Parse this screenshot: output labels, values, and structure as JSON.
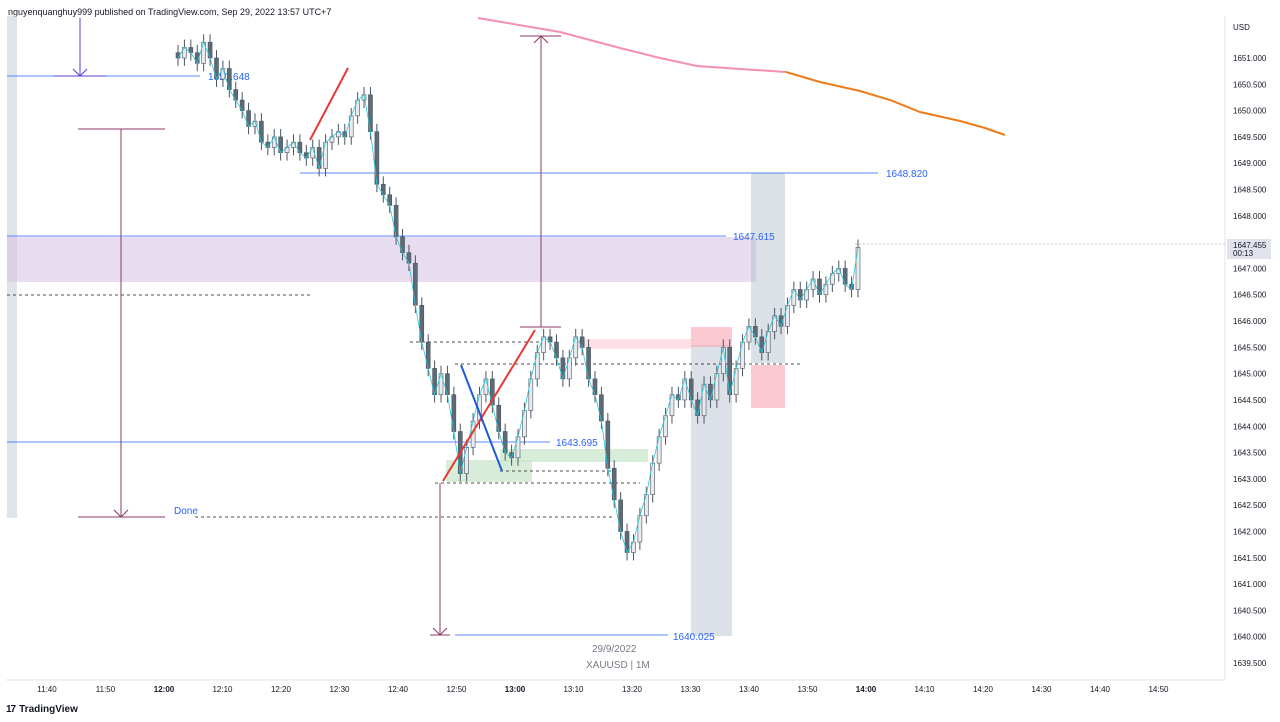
{
  "header": {
    "publisher_text": "nguyenquanghuy999 published on TradingView.com, Sep 29, 2022 13:57 UTC+7"
  },
  "footer": {
    "brand": "TradingView",
    "logo_glyph": "17"
  },
  "chart_data": {
    "type": "candlestick",
    "symbol_label": "XAUUSD | 1M",
    "date_label": "29/9/2022",
    "currency": "USD",
    "y_ticks": [
      "1651.000",
      "1650.500",
      "1650.000",
      "1649.500",
      "1649.000",
      "1648.500",
      "1648.000",
      "1647.500",
      "1647.000",
      "1646.500",
      "1646.000",
      "1645.500",
      "1645.000",
      "1644.500",
      "1644.000",
      "1643.500",
      "1643.000",
      "1642.500",
      "1642.000",
      "1641.500",
      "1641.000",
      "1640.500",
      "1640.000",
      "1639.500"
    ],
    "x_ticks": [
      {
        "label": "11:40",
        "bold": false
      },
      {
        "label": "11:50",
        "bold": false
      },
      {
        "label": "12:00",
        "bold": true
      },
      {
        "label": "12:10",
        "bold": false
      },
      {
        "label": "12:20",
        "bold": false
      },
      {
        "label": "12:30",
        "bold": false
      },
      {
        "label": "12:40",
        "bold": false
      },
      {
        "label": "12:50",
        "bold": false
      },
      {
        "label": "13:00",
        "bold": true
      },
      {
        "label": "13:10",
        "bold": false
      },
      {
        "label": "13:20",
        "bold": false
      },
      {
        "label": "13:30",
        "bold": false
      },
      {
        "label": "13:40",
        "bold": false
      },
      {
        "label": "13:50",
        "bold": false
      },
      {
        "label": "14:00",
        "bold": true
      },
      {
        "label": "14:10",
        "bold": false
      },
      {
        "label": "14:20",
        "bold": false
      },
      {
        "label": "14:30",
        "bold": false
      },
      {
        "label": "14:40",
        "bold": false
      },
      {
        "label": "14:50",
        "bold": false
      }
    ],
    "last_price": "1647.455",
    "countdown": "00:13",
    "levels": [
      {
        "price": "1650.648",
        "value": 1650.648
      },
      {
        "price": "1648.820",
        "value": 1648.82
      },
      {
        "price": "1647.615",
        "value": 1647.615
      },
      {
        "price": "1643.695",
        "value": 1643.695
      },
      {
        "price": "1640.025",
        "value": 1640.025
      }
    ],
    "annotation_done": "Done",
    "candles_close_path": [
      1651.0,
      1651.2,
      1651.1,
      1650.9,
      1651.3,
      1651.0,
      1650.6,
      1650.8,
      1650.4,
      1650.2,
      1650.0,
      1649.7,
      1649.8,
      1649.4,
      1649.3,
      1649.5,
      1649.2,
      1649.3,
      1649.4,
      1649.2,
      1649.1,
      1649.3,
      1648.9,
      1649.4,
      1649.5,
      1649.6,
      1649.5,
      1649.9,
      1650.2,
      1650.3,
      1649.6,
      1648.6,
      1648.4,
      1648.2,
      1647.6,
      1647.3,
      1647.1,
      1646.3,
      1645.6,
      1645.1,
      1644.6,
      1645.0,
      1644.6,
      1643.9,
      1643.1,
      1643.6,
      1644.1,
      1644.6,
      1644.9,
      1644.4,
      1643.9,
      1643.5,
      1643.4,
      1643.8,
      1644.3,
      1644.9,
      1645.4,
      1645.7,
      1645.6,
      1645.3,
      1644.9,
      1645.3,
      1645.7,
      1645.5,
      1644.9,
      1644.6,
      1644.1,
      1643.2,
      1642.6,
      1642.0,
      1641.6,
      1641.8,
      1642.3,
      1642.7,
      1643.3,
      1643.8,
      1644.2,
      1644.6,
      1644.5,
      1644.9,
      1644.5,
      1644.2,
      1644.8,
      1644.5,
      1645.0,
      1645.5,
      1644.6,
      1645.1,
      1645.6,
      1645.9,
      1645.7,
      1645.4,
      1645.8,
      1646.1,
      1645.9,
      1646.3,
      1646.6,
      1646.4,
      1646.6,
      1646.8,
      1646.5,
      1646.7,
      1646.9,
      1647.0,
      1646.7,
      1646.6,
      1647.4
    ]
  }
}
